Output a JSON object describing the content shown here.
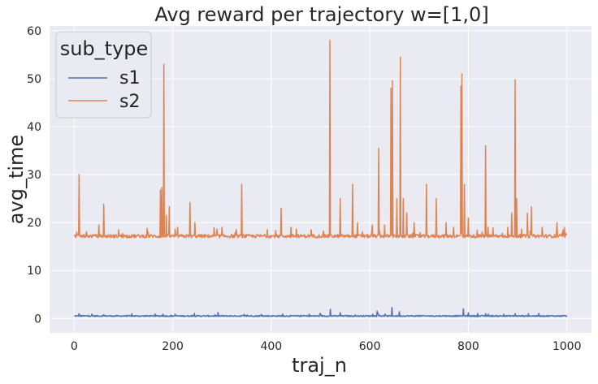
{
  "chart_data": {
    "type": "line",
    "title": "Avg reward per trajectory w=[1,0]",
    "xlabel": "traj_n",
    "ylabel": "avg_time",
    "xlim": [
      -50,
      1050
    ],
    "ylim": [
      -3,
      61
    ],
    "xticks": [
      0,
      200,
      400,
      600,
      800,
      1000
    ],
    "yticks": [
      0,
      10,
      20,
      30,
      40,
      50,
      60
    ],
    "xtick_labels": [
      "0",
      "200",
      "400",
      "600",
      "800",
      "1000"
    ],
    "ytick_labels": [
      "0",
      "10",
      "20",
      "30",
      "40",
      "50",
      "60"
    ],
    "grid": true,
    "legend": {
      "title": "sub_type",
      "placement": "top-left",
      "entries": [
        "s1",
        "s2"
      ]
    },
    "colors": {
      "background": "#eaeaf2",
      "s1": "#4c72b0",
      "s2": "#dd8452"
    },
    "series": [
      {
        "name": "s1",
        "baseline": 0.5,
        "noise": 0.25,
        "peaks": [
          [
            10,
            1.0
          ],
          [
            60,
            0.8
          ],
          [
            180,
            0.9
          ],
          [
            520,
            1.9
          ],
          [
            540,
            1.2
          ],
          [
            615,
            1.5
          ],
          [
            645,
            2.3
          ],
          [
            660,
            1.4
          ],
          [
            790,
            2.0
          ],
          [
            800,
            1.2
          ],
          [
            835,
            1.0
          ],
          [
            895,
            1.0
          ]
        ]
      },
      {
        "name": "s2",
        "baseline": 17.1,
        "noise": 0.7,
        "peaks": [
          [
            5,
            18.0
          ],
          [
            10,
            30.0
          ],
          [
            50,
            19.5
          ],
          [
            60,
            23.8
          ],
          [
            90,
            18.5
          ],
          [
            150,
            18.0
          ],
          [
            175,
            26.8
          ],
          [
            178,
            27.3
          ],
          [
            182,
            53.0
          ],
          [
            187,
            21.5
          ],
          [
            193,
            23.3
          ],
          [
            210,
            19.0
          ],
          [
            235,
            24.2
          ],
          [
            245,
            20.0
          ],
          [
            300,
            19.0
          ],
          [
            340,
            28.0
          ],
          [
            420,
            23.0
          ],
          [
            440,
            19.0
          ],
          [
            519,
            58.0
          ],
          [
            540,
            25.0
          ],
          [
            565,
            28.0
          ],
          [
            575,
            20.0
          ],
          [
            605,
            19.5
          ],
          [
            618,
            35.5
          ],
          [
            630,
            19.5
          ],
          [
            643,
            48.0
          ],
          [
            646,
            49.6
          ],
          [
            655,
            25.0
          ],
          [
            662,
            54.5
          ],
          [
            668,
            25.0
          ],
          [
            675,
            22.0
          ],
          [
            690,
            20.0
          ],
          [
            715,
            28.0
          ],
          [
            735,
            25.0
          ],
          [
            755,
            20.0
          ],
          [
            770,
            19.0
          ],
          [
            785,
            48.5
          ],
          [
            787,
            51.0
          ],
          [
            792,
            28.0
          ],
          [
            800,
            21.0
          ],
          [
            835,
            36.0
          ],
          [
            840,
            19.0
          ],
          [
            880,
            19.0
          ],
          [
            888,
            22.0
          ],
          [
            895,
            49.8
          ],
          [
            898,
            25.0
          ],
          [
            920,
            22.0
          ],
          [
            928,
            23.3
          ],
          [
            950,
            19.0
          ],
          [
            980,
            20.0
          ],
          [
            995,
            19.0
          ]
        ]
      }
    ]
  }
}
